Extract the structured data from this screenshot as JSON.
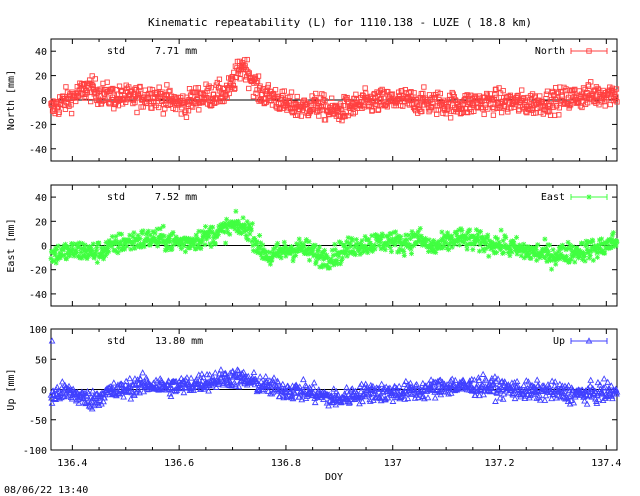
{
  "title": "Kinematic repeatability (L) for 1110.138 - LUZE  ( 18.8 km)",
  "footer": "08/06/22 13:40",
  "chart_data": [
    {
      "type": "scatter",
      "name": "north",
      "ylabel": "North [mm]",
      "legend": "North",
      "legend_position": "top-right",
      "stat_label": "std",
      "stat_value": "7.71 mm",
      "color": "#ff4040",
      "marker": "square",
      "ylim": [
        -50,
        50
      ],
      "yticks": [
        -40,
        -20,
        0,
        20,
        40
      ],
      "xlim": [
        136.36,
        137.42
      ],
      "profile": [
        [
          136.36,
          -8
        ],
        [
          136.38,
          -2
        ],
        [
          136.4,
          2
        ],
        [
          136.43,
          10
        ],
        [
          136.45,
          6
        ],
        [
          136.48,
          2
        ],
        [
          136.52,
          2
        ],
        [
          136.55,
          4
        ],
        [
          136.58,
          0
        ],
        [
          136.61,
          -4
        ],
        [
          136.63,
          2
        ],
        [
          136.66,
          4
        ],
        [
          136.69,
          6
        ],
        [
          136.71,
          22
        ],
        [
          136.72,
          30
        ],
        [
          136.735,
          18
        ],
        [
          136.75,
          6
        ],
        [
          136.78,
          2
        ],
        [
          136.8,
          -4
        ],
        [
          136.83,
          -6
        ],
        [
          136.86,
          -4
        ],
        [
          136.89,
          -10
        ],
        [
          136.92,
          -6
        ],
        [
          136.95,
          -2
        ],
        [
          136.98,
          -1
        ],
        [
          137.01,
          0
        ],
        [
          137.04,
          -1
        ],
        [
          137.07,
          -2
        ],
        [
          137.1,
          -3
        ],
        [
          137.13,
          -4
        ],
        [
          137.16,
          -2
        ],
        [
          137.19,
          -1
        ],
        [
          137.22,
          -2
        ],
        [
          137.25,
          -3
        ],
        [
          137.28,
          -2
        ],
        [
          137.31,
          0
        ],
        [
          137.34,
          2
        ],
        [
          137.37,
          4
        ],
        [
          137.4,
          5
        ],
        [
          137.42,
          6
        ]
      ],
      "spread": 9
    },
    {
      "type": "scatter",
      "name": "east",
      "ylabel": "East [mm]",
      "legend": "East",
      "legend_position": "top-right",
      "stat_label": "std",
      "stat_value": "7.52 mm",
      "color": "#40ff40",
      "marker": "cross",
      "ylim": [
        -50,
        50
      ],
      "yticks": [
        -40,
        -20,
        0,
        20,
        40
      ],
      "xlim": [
        136.36,
        137.42
      ],
      "profile": [
        [
          136.36,
          -8
        ],
        [
          136.38,
          -6
        ],
        [
          136.41,
          -4
        ],
        [
          136.44,
          -6
        ],
        [
          136.46,
          -4
        ],
        [
          136.49,
          2
        ],
        [
          136.52,
          4
        ],
        [
          136.55,
          6
        ],
        [
          136.58,
          4
        ],
        [
          136.61,
          2
        ],
        [
          136.64,
          6
        ],
        [
          136.67,
          10
        ],
        [
          136.7,
          16
        ],
        [
          136.73,
          14
        ],
        [
          136.75,
          -2
        ],
        [
          136.77,
          -10
        ],
        [
          136.8,
          -4
        ],
        [
          136.83,
          -2
        ],
        [
          136.86,
          -8
        ],
        [
          136.88,
          -10
        ],
        [
          136.9,
          -6
        ],
        [
          136.93,
          0
        ],
        [
          136.96,
          2
        ],
        [
          136.99,
          4
        ],
        [
          137.02,
          2
        ],
        [
          137.05,
          6
        ],
        [
          137.07,
          -2
        ],
        [
          137.09,
          0
        ],
        [
          137.12,
          6
        ],
        [
          137.15,
          4
        ],
        [
          137.18,
          2
        ],
        [
          137.21,
          0
        ],
        [
          137.24,
          -4
        ],
        [
          137.27,
          -6
        ],
        [
          137.3,
          -8
        ],
        [
          137.33,
          -6
        ],
        [
          137.36,
          -4
        ],
        [
          137.39,
          -2
        ],
        [
          137.42,
          4
        ]
      ],
      "spread": 8
    },
    {
      "type": "scatter",
      "name": "up",
      "ylabel": "Up [mm]",
      "legend": "Up",
      "legend_position": "top-right",
      "stat_label": "std",
      "stat_value": "13.80 mm",
      "color": "#4040ff",
      "marker": "triangle",
      "xlabel": "DOY",
      "ylim": [
        -100,
        100
      ],
      "yticks": [
        -100,
        -50,
        0,
        50,
        100
      ],
      "xlim": [
        136.36,
        137.42
      ],
      "xticks": [
        136.4,
        136.6,
        136.8,
        137,
        137.2,
        137.4
      ],
      "profile": [
        [
          136.36,
          -12
        ],
        [
          136.38,
          -4
        ],
        [
          136.4,
          -6
        ],
        [
          136.42,
          -14
        ],
        [
          136.44,
          -18
        ],
        [
          136.46,
          -6
        ],
        [
          136.49,
          -2
        ],
        [
          136.52,
          6
        ],
        [
          136.55,
          8
        ],
        [
          136.58,
          4
        ],
        [
          136.61,
          6
        ],
        [
          136.64,
          12
        ],
        [
          136.67,
          16
        ],
        [
          136.7,
          20
        ],
        [
          136.73,
          14
        ],
        [
          136.76,
          6
        ],
        [
          136.79,
          0
        ],
        [
          136.82,
          -2
        ],
        [
          136.85,
          -6
        ],
        [
          136.88,
          -14
        ],
        [
          136.9,
          -16
        ],
        [
          136.93,
          -8
        ],
        [
          136.96,
          -4
        ],
        [
          136.99,
          -6
        ],
        [
          137.02,
          -4
        ],
        [
          137.05,
          -2
        ],
        [
          137.08,
          2
        ],
        [
          137.11,
          6
        ],
        [
          137.14,
          4
        ],
        [
          137.17,
          6
        ],
        [
          137.2,
          2
        ],
        [
          137.23,
          0
        ],
        [
          137.26,
          -4
        ],
        [
          137.29,
          -2
        ],
        [
          137.32,
          -6
        ],
        [
          137.35,
          -8
        ],
        [
          137.38,
          -6
        ],
        [
          137.42,
          -4
        ]
      ],
      "spread": 14
    }
  ]
}
